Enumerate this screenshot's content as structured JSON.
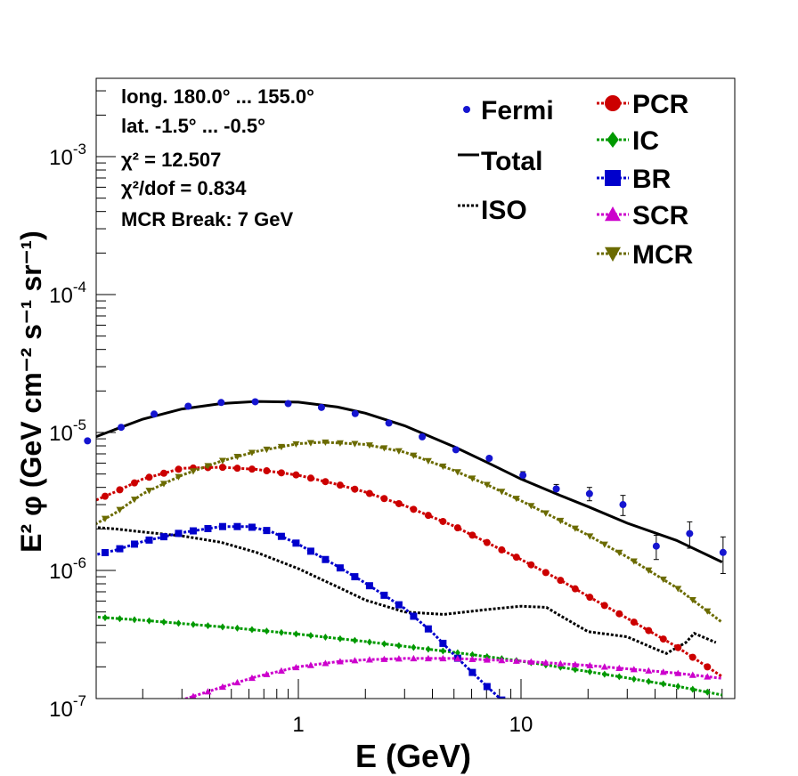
{
  "chart_data": {
    "type": "line",
    "xscale": "log",
    "yscale": "log",
    "xlim": [
      0.1,
      80
    ],
    "ylim": [
      1e-07,
      0.004
    ],
    "xlabel": "E (GeV)",
    "ylabel": "E² φ (GeV cm⁻² s⁻¹ sr⁻¹)",
    "x_ticklabels": [
      {
        "value": 1,
        "text": "1"
      },
      {
        "value": 10,
        "text": "10"
      }
    ],
    "y_ticklabels": [
      {
        "value": 1e-07,
        "mant": "10",
        "exp": "-7"
      },
      {
        "value": 1e-06,
        "mant": "10",
        "exp": "-6"
      },
      {
        "value": 1e-05,
        "mant": "10",
        "exp": "-5"
      },
      {
        "value": 0.0001,
        "mant": "10",
        "exp": "-4"
      },
      {
        "value": 0.001,
        "mant": "10",
        "exp": "-3"
      }
    ],
    "info": {
      "longitude": "long. 180.0° ... 155.0°",
      "latitude": "lat. -1.5° ... -0.5°",
      "chi2": "χ² = 12.507",
      "chi2dof": "χ²/dof = 0.834",
      "mcr_break": "MCR Break:  7 GeV"
    },
    "fermi": {
      "name": "Fermi",
      "color": "#1515d0",
      "x": [
        0.113,
        0.16,
        0.225,
        0.32,
        0.45,
        0.64,
        0.9,
        1.27,
        1.8,
        2.55,
        3.6,
        5.1,
        7.2,
        10.2,
        14.4,
        20.3,
        28.7,
        40.5,
        57.2,
        80.8
      ],
      "y": [
        8.7e-06,
        1.09e-05,
        1.36e-05,
        1.55e-05,
        1.65e-05,
        1.67e-05,
        1.62e-05,
        1.52e-05,
        1.37e-05,
        1.17e-05,
        9.3e-06,
        7.5e-06,
        6.5e-06,
        4.9e-06,
        3.9e-06,
        3.6e-06,
        3e-06,
        1.5e-06,
        1.85e-06,
        1.35e-06
      ],
      "err": [
        2e-07,
        2e-07,
        2e-07,
        2e-07,
        2e-07,
        2e-07,
        2e-07,
        2e-07,
        2e-07,
        2e-07,
        2e-07,
        2e-07,
        2e-07,
        3e-07,
        3e-07,
        4e-07,
        5e-07,
        3e-07,
        4e-07,
        4e-07
      ]
    },
    "series": [
      {
        "name": "Total",
        "color": "#000000",
        "style": "solid",
        "marker": "none",
        "x": [
          0.1,
          0.15,
          0.2,
          0.3,
          0.45,
          0.65,
          1.0,
          1.5,
          2.0,
          3.0,
          5.0,
          7.0,
          10,
          15,
          20,
          30,
          50,
          80
        ],
        "y": [
          8.2e-06,
          1.05e-05,
          1.25e-05,
          1.48e-05,
          1.62e-05,
          1.68e-05,
          1.66e-05,
          1.53e-05,
          1.38e-05,
          1.12e-05,
          7.9e-06,
          6.1e-06,
          4.6e-06,
          3.5e-06,
          2.9e-06,
          2.2e-06,
          1.65e-06,
          1.15e-06
        ]
      },
      {
        "name": "ISO",
        "color": "#000000",
        "style": "dotted",
        "marker": "none",
        "x": [
          0.1,
          0.15,
          0.2,
          0.3,
          0.45,
          0.65,
          1.0,
          1.5,
          2.0,
          3.0,
          4.5,
          7.0,
          10,
          13,
          15,
          20,
          30,
          40,
          45,
          55,
          60,
          75
        ],
        "y": [
          2.1e-06,
          2e-06,
          1.9e-06,
          1.78e-06,
          1.6e-06,
          1.35e-06,
          1.03e-06,
          7.6e-07,
          6.1e-07,
          5e-07,
          4.8e-07,
          5.2e-07,
          5.5e-07,
          5.4e-07,
          4.7e-07,
          3.6e-07,
          3.3e-07,
          2.7e-07,
          2.5e-07,
          3e-07,
          3.5e-07,
          3e-07
        ]
      },
      {
        "name": "PCR",
        "color": "#cc0000",
        "style": "dotted",
        "marker": "circle",
        "x": [
          0.1,
          0.15,
          0.2,
          0.3,
          0.45,
          0.65,
          1.0,
          1.5,
          2.0,
          3.0,
          5.0,
          7.0,
          10,
          15,
          20,
          30,
          50,
          80
        ],
        "y": [
          2.8e-06,
          3.7e-06,
          4.6e-06,
          5.5e-06,
          5.6e-06,
          5.4e-06,
          4.9e-06,
          4.2e-06,
          3.7e-06,
          2.95e-06,
          2.1e-06,
          1.6e-06,
          1.2e-06,
          8.5e-07,
          6.5e-07,
          4.5e-07,
          2.8e-07,
          1.7e-07
        ]
      },
      {
        "name": "IC",
        "color": "#009900",
        "style": "dotted",
        "marker": "diamond",
        "x": [
          0.1,
          0.2,
          0.5,
          1.0,
          2.0,
          5.0,
          10,
          20,
          50,
          80
        ],
        "y": [
          4.7e-07,
          4.35e-07,
          3.85e-07,
          3.45e-07,
          3.05e-07,
          2.55e-07,
          2.2e-07,
          1.85e-07,
          1.45e-07,
          1.25e-07
        ]
      },
      {
        "name": "BR",
        "color": "#0000cc",
        "style": "dotted",
        "marker": "square",
        "x": [
          0.1,
          0.15,
          0.2,
          0.3,
          0.45,
          0.6,
          0.75,
          1.0,
          1.5,
          2.0,
          3.0,
          4.0,
          5.0,
          7.0,
          9.0
        ],
        "y": [
          1.2e-06,
          1.4e-06,
          1.62e-06,
          1.88e-06,
          2.08e-06,
          2.08e-06,
          1.92e-06,
          1.55e-06,
          1.07e-06,
          8.1e-07,
          5.3e-07,
          3.55e-07,
          2.45e-07,
          1.45e-07,
          1e-07
        ]
      },
      {
        "name": "SCR",
        "color": "#cc00cc",
        "style": "dotted",
        "marker": "triangle-up",
        "x": [
          0.24,
          0.3,
          0.45,
          0.65,
          1.0,
          1.5,
          2.0,
          3.0,
          5.0,
          10,
          20,
          50,
          80
        ],
        "y": [
          1e-07,
          1.15e-07,
          1.42e-07,
          1.7e-07,
          2e-07,
          2.18e-07,
          2.25e-07,
          2.3e-07,
          2.3e-07,
          2.2e-07,
          2.05e-07,
          1.8e-07,
          1.65e-07
        ]
      },
      {
        "name": "MCR",
        "color": "#6b6b00",
        "style": "dotted",
        "marker": "triangle-down",
        "x": [
          0.1,
          0.15,
          0.2,
          0.3,
          0.45,
          0.65,
          1.0,
          1.3,
          2.0,
          3.0,
          5.0,
          7.0,
          10,
          15,
          20,
          30,
          50,
          80
        ],
        "y": [
          1.8e-06,
          2.6e-06,
          3.6e-06,
          4.9e-06,
          6.2e-06,
          7.3e-06,
          8.3e-06,
          8.5e-06,
          8.2e-06,
          7.2e-06,
          5.3e-06,
          4.2e-06,
          3.2e-06,
          2.3e-06,
          1.8e-06,
          1.25e-06,
          7.5e-07,
          4.2e-07
        ]
      }
    ],
    "legend": {
      "left": [
        {
          "label": "Fermi",
          "symbol": "fermi"
        },
        {
          "label": "Total",
          "symbol": "Total"
        },
        {
          "label": "ISO",
          "symbol": "ISO"
        }
      ],
      "right": [
        {
          "label": "PCR",
          "symbol": "PCR"
        },
        {
          "label": "IC",
          "symbol": "IC"
        },
        {
          "label": "BR",
          "symbol": "BR"
        },
        {
          "label": "SCR",
          "symbol": "SCR"
        },
        {
          "label": "MCR",
          "symbol": "MCR"
        }
      ]
    }
  }
}
